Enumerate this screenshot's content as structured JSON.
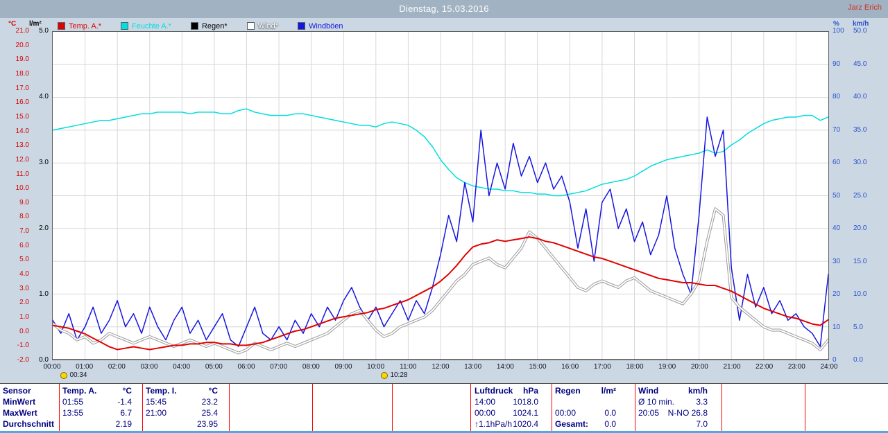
{
  "header": {
    "title": "Dienstag, 15.03.2016",
    "watermark": "Jarz Erich"
  },
  "axes": {
    "left_temp": {
      "unit": "°C",
      "min": -2,
      "max": 21,
      "ticks": [
        "21.0",
        "20.0",
        "19.0",
        "18.0",
        "17.0",
        "16.0",
        "15.0",
        "14.0",
        "13.0",
        "12.0",
        "11.0",
        "10.0",
        "9.0",
        "8.0",
        "7.0",
        "6.0",
        "5.0",
        "4.0",
        "3.0",
        "2.0",
        "1.0",
        "0.0",
        "-1.0",
        "-2.0"
      ]
    },
    "left_rain": {
      "unit": "l/m²",
      "min": 0,
      "max": 5,
      "ticks": [
        "5.0",
        "4.0",
        "3.0",
        "2.0",
        "1.0",
        "0.0"
      ]
    },
    "right_humidity": {
      "unit": "%",
      "min": 0,
      "max": 100,
      "ticks": [
        "100",
        "90",
        "80",
        "70",
        "60",
        "50",
        "40",
        "30",
        "20",
        "10",
        "0"
      ]
    },
    "right_wind": {
      "unit": "km/h",
      "min": 0,
      "max": 50,
      "ticks": [
        "50.0",
        "45.0",
        "40.0",
        "35.0",
        "30.0",
        "25.0",
        "20.0",
        "15.0",
        "10.0",
        "5.0",
        "0.0"
      ]
    },
    "x": {
      "ticks": [
        "00:00",
        "01:00",
        "02:00",
        "03:00",
        "04:00",
        "05:00",
        "06:00",
        "07:00",
        "08:00",
        "09:00",
        "10:00",
        "11:00",
        "12:00",
        "13:00",
        "14:00",
        "15:00",
        "16:00",
        "17:00",
        "18:00",
        "19:00",
        "20:00",
        "21:00",
        "22:00",
        "23:00",
        "24:00"
      ]
    }
  },
  "legend": [
    {
      "label": "Temp. A.*",
      "color": "#e10000"
    },
    {
      "label": "Feuchte A.*",
      "color": "#00dede"
    },
    {
      "label": "Regen*",
      "color": "#000000"
    },
    {
      "label": "Wind*",
      "color": "#ffffff"
    },
    {
      "label": "Windböen",
      "color": "#1515e0"
    }
  ],
  "markers": [
    {
      "time": "00:34"
    },
    {
      "time": "10:28"
    }
  ],
  "colors": {
    "header_bg": "#a1b2c2",
    "chart_bg": "#cbd8e4",
    "grid": "#d8d8d8",
    "table_text": "#000080",
    "column_separator": "#ff0000",
    "bottom_line": "#54a7e0",
    "watermark": "#cf3327"
  },
  "chart_data": {
    "type": "line",
    "title": "Dienstag, 15.03.2016",
    "x_start_hour": 0,
    "x_end_hour": 24,
    "x_step_minutes": 15,
    "grid": true,
    "series": [
      {
        "name": "Feuchte A.*",
        "unit": "%",
        "color": "#00dede",
        "width": 1.5,
        "scale_min": 0,
        "scale_max": 100,
        "values": [
          70,
          70.5,
          71,
          71.5,
          72,
          72.5,
          73,
          73,
          73.5,
          74,
          74.5,
          75,
          75,
          75.5,
          75.5,
          75.5,
          75.5,
          75,
          75.5,
          75.5,
          75.5,
          75,
          75,
          76,
          76.5,
          75.5,
          75,
          74.5,
          74.5,
          74.5,
          75,
          75,
          74.5,
          74,
          73.5,
          73,
          72.5,
          72,
          71.5,
          71.5,
          71,
          72,
          72.5,
          72,
          71.5,
          70,
          68,
          65,
          61,
          58,
          55.5,
          54,
          53,
          52.5,
          52,
          52,
          51.5,
          51.5,
          51,
          51,
          50.5,
          50.5,
          50,
          50,
          50.5,
          51,
          51.5,
          52.5,
          53.5,
          54,
          54.5,
          55,
          56,
          57.5,
          59,
          60,
          61,
          61.5,
          62,
          62.5,
          63,
          64,
          63,
          63.5,
          65.5,
          67,
          69,
          70.5,
          72,
          73,
          73.5,
          74,
          74,
          74.5,
          74.5,
          73,
          74
        ]
      },
      {
        "name": "Regen*",
        "unit": "l/m²",
        "color": "#000000",
        "width": 1,
        "scale_min": 0,
        "scale_max": 5,
        "values": [
          0,
          0
        ]
      },
      {
        "name": "Windböen",
        "unit": "km/h",
        "color": "#1515e0",
        "width": 1.5,
        "scale_min": 0,
        "scale_max": 50,
        "values": [
          6,
          4,
          7,
          3,
          5,
          8,
          4,
          6,
          9,
          5,
          7,
          4,
          8,
          5,
          3,
          6,
          8,
          4,
          6,
          3,
          5,
          7,
          3,
          2,
          5,
          8,
          4,
          3,
          5,
          3,
          6,
          4,
          7,
          5,
          8,
          6,
          9,
          11,
          8,
          6,
          8,
          5,
          7,
          9,
          6,
          9,
          7,
          11,
          16,
          22,
          18,
          27,
          21,
          35,
          25,
          30,
          26,
          33,
          28,
          31,
          27,
          30,
          26,
          28,
          24,
          17,
          23,
          15,
          24,
          26,
          20,
          23,
          18,
          21,
          16,
          19,
          25,
          17,
          13,
          10,
          22,
          37,
          31,
          35,
          14,
          6,
          13,
          8,
          11,
          7,
          9,
          6,
          7,
          5,
          4,
          2,
          13
        ]
      },
      {
        "name": "Wind*",
        "unit": "km/h",
        "color": "#ffffff",
        "outline_color": "#9a9a9a",
        "width": 2,
        "scale_min": 0,
        "scale_max": 50,
        "values": [
          5.5,
          4.5,
          4,
          3,
          3.5,
          2.5,
          3,
          4,
          3.5,
          3,
          2.5,
          3,
          3.5,
          3,
          2.5,
          2,
          2.5,
          3,
          2.5,
          2,
          2.5,
          2,
          1.5,
          1,
          1.5,
          2.5,
          2,
          1.5,
          2,
          2.5,
          2,
          2.5,
          3,
          3.5,
          4,
          5,
          6,
          7,
          7.5,
          6,
          4.5,
          3.5,
          4,
          5,
          5.5,
          6,
          6.5,
          7.5,
          9,
          10.5,
          12,
          13,
          14.5,
          15,
          15.5,
          14.5,
          14,
          15.5,
          17,
          19.5,
          18.5,
          17,
          15.5,
          14,
          12.5,
          11,
          10.5,
          11.5,
          12,
          11.5,
          11,
          12,
          12.5,
          11.5,
          10.5,
          10,
          9.5,
          9,
          8.5,
          10,
          12,
          18,
          23,
          22,
          9.5,
          8,
          7,
          6,
          5,
          4.5,
          4.5,
          4,
          3.5,
          3,
          2.5,
          1.5,
          3
        ]
      },
      {
        "name": "Temp. A.*",
        "unit": "°C",
        "color": "#e10000",
        "width": 2,
        "scale_min": -2,
        "scale_max": 21,
        "values": [
          0.4,
          0.3,
          0.2,
          0.0,
          -0.2,
          -0.5,
          -0.8,
          -1.1,
          -1.3,
          -1.2,
          -1.1,
          -1.2,
          -1.3,
          -1.2,
          -1.1,
          -1.0,
          -1.0,
          -0.9,
          -0.9,
          -0.8,
          -0.8,
          -0.9,
          -0.9,
          -1.0,
          -1.0,
          -0.9,
          -0.8,
          -0.6,
          -0.4,
          -0.2,
          0.0,
          0.1,
          0.3,
          0.5,
          0.7,
          0.9,
          1.0,
          1.1,
          1.2,
          1.3,
          1.5,
          1.6,
          1.8,
          2.0,
          2.2,
          2.5,
          2.8,
          3.1,
          3.5,
          4.0,
          4.6,
          5.3,
          5.9,
          6.1,
          6.2,
          6.4,
          6.3,
          6.4,
          6.5,
          6.6,
          6.5,
          6.3,
          6.2,
          6.0,
          5.8,
          5.6,
          5.4,
          5.2,
          5.1,
          4.9,
          4.7,
          4.5,
          4.3,
          4.1,
          3.9,
          3.7,
          3.6,
          3.5,
          3.4,
          3.4,
          3.3,
          3.2,
          3.2,
          3.0,
          2.8,
          2.5,
          2.2,
          1.9,
          1.6,
          1.4,
          1.2,
          1.0,
          0.9,
          0.7,
          0.5,
          0.4,
          0.8
        ]
      }
    ]
  },
  "stats_table": {
    "row_labels": [
      "Sensor",
      "MinWert",
      "MaxWert",
      "Durchschnitt"
    ],
    "temp_a": {
      "name": "Temp. A.",
      "unit": "°C",
      "min_time": "01:55",
      "min": "-1.4",
      "max_time": "13:55",
      "max": "6.7",
      "avg": "2.19"
    },
    "temp_i": {
      "name": "Temp. I.",
      "unit": "°C",
      "min_time": "15:45",
      "min": "23.2",
      "max_time": "21:00",
      "max": "25.4",
      "avg": "23.95"
    },
    "pressure": {
      "name": "Luftdruck",
      "unit": "hPa",
      "min_time": "14:00",
      "min": "1018.0",
      "max_time": "00:00",
      "max": "1024.1",
      "trend": "↑1.1hPa/h",
      "avg": "1020.4"
    },
    "rain": {
      "name": "Regen",
      "unit": "l/m²",
      "max_time": "00:00",
      "max": "0.0",
      "total_label": "Gesamt:",
      "total": "0.0"
    },
    "wind": {
      "name": "Wind",
      "unit": "km/h",
      "min_label": "Ø 10 min.",
      "min": "3.3",
      "max_time": "20:05",
      "max": "N-NO 26.8",
      "avg": "7.0"
    }
  }
}
